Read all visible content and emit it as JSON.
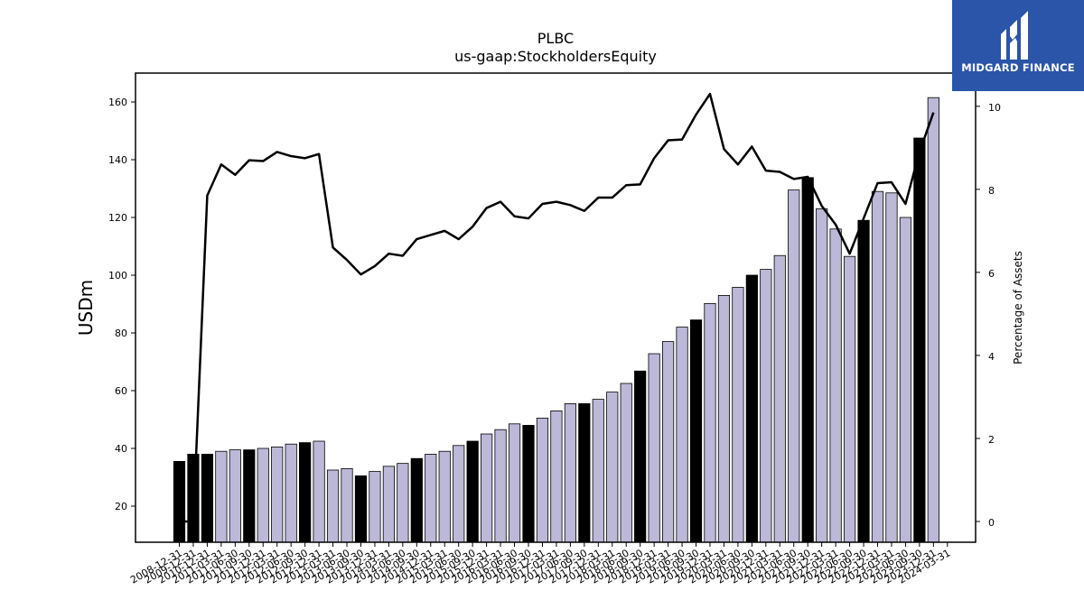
{
  "chart_data": {
    "type": "bar",
    "title": "PLBC",
    "subtitle": "us-gaap:StockholdersEquity",
    "ylabel": "USDm",
    "y2label": "Percentage of Assets",
    "ylim": [
      7.5,
      170
    ],
    "y2lim": [
      -0.5,
      10.8
    ],
    "yticks": [
      20,
      40,
      60,
      80,
      100,
      120,
      140,
      160
    ],
    "y2ticks": [
      0,
      2,
      4,
      6,
      8,
      10
    ],
    "grid": false,
    "colors": {
      "bar_annual": "#000000",
      "bar_quarter": "#bcb8d8",
      "line": "#000000",
      "bar_edge": "#000000"
    },
    "categories": [
      "2008-12-31",
      "2009-12-31",
      "2010-12-31",
      "2011-03-31",
      "2011-06-30",
      "2011-09-30",
      "2011-12-31",
      "2012-03-31",
      "2012-06-30",
      "2012-09-30",
      "2012-12-31",
      "2013-03-31",
      "2013-06-30",
      "2013-09-30",
      "2013-12-31",
      "2014-03-31",
      "2014-06-30",
      "2014-09-30",
      "2014-12-31",
      "2015-03-31",
      "2015-06-30",
      "2015-09-30",
      "2015-12-31",
      "2016-03-31",
      "2016-06-30",
      "2016-09-30",
      "2016-12-31",
      "2017-03-31",
      "2017-06-30",
      "2017-09-30",
      "2017-12-31",
      "2018-03-31",
      "2018-06-30",
      "2018-09-30",
      "2018-12-31",
      "2019-03-31",
      "2019-06-30",
      "2019-09-30",
      "2019-12-31",
      "2020-03-31",
      "2020-06-30",
      "2020-09-30",
      "2020-12-31",
      "2021-03-31",
      "2021-06-30",
      "2021-09-30",
      "2021-12-31",
      "2022-03-31",
      "2022-06-30",
      "2022-09-30",
      "2022-12-31",
      "2023-03-31",
      "2023-06-30",
      "2023-09-30",
      "2023-12-31",
      "2024-03-31"
    ],
    "series": [
      {
        "values": [
          35.5,
          38.0,
          38.0,
          39.0,
          39.5,
          39.5,
          40.0,
          40.5,
          41.5,
          42.0,
          42.5,
          32.5,
          33.0,
          30.5,
          32.0,
          33.8,
          34.8,
          36.5,
          38.0,
          39.0,
          41.0,
          42.5,
          45.0,
          46.5,
          48.5,
          48.0,
          50.5,
          53.0,
          55.5,
          55.5,
          57.0,
          59.5,
          62.5,
          66.8,
          72.8,
          77.0,
          82.0,
          84.5,
          90.2,
          93.0,
          95.8,
          100.0,
          102.0,
          106.8,
          129.5,
          133.8,
          123.0,
          116.0,
          106.5,
          119.0,
          129.0,
          128.5,
          120.0,
          147.5,
          161.5,
          null
        ],
        "annual": [
          true,
          true,
          true,
          false,
          false,
          true,
          false,
          false,
          false,
          true,
          false,
          false,
          false,
          true,
          false,
          false,
          false,
          true,
          false,
          false,
          false,
          true,
          false,
          false,
          false,
          true,
          false,
          false,
          false,
          true,
          false,
          false,
          false,
          true,
          false,
          false,
          false,
          true,
          false,
          false,
          false,
          true,
          false,
          false,
          false,
          true,
          false,
          false,
          false,
          true,
          false,
          false,
          false,
          true,
          false,
          false
        ]
      },
      {
        "line_pct": [
          0.0,
          0.0,
          7.85,
          8.6,
          8.35,
          8.7,
          8.68,
          8.9,
          8.8,
          8.75,
          8.85,
          6.6,
          6.3,
          5.95,
          6.15,
          6.45,
          6.4,
          6.8,
          6.9,
          7.0,
          6.8,
          7.1,
          7.55,
          7.7,
          7.35,
          7.3,
          7.65,
          7.7,
          7.62,
          7.48,
          7.8,
          7.8,
          8.1,
          8.12,
          8.75,
          9.18,
          9.2,
          9.8,
          10.3,
          8.97,
          8.6,
          9.03,
          8.45,
          8.42,
          8.25,
          8.3,
          7.6,
          7.15,
          6.45,
          7.3,
          8.15,
          8.17,
          7.65,
          8.9,
          9.85,
          null
        ]
      }
    ]
  }
}
